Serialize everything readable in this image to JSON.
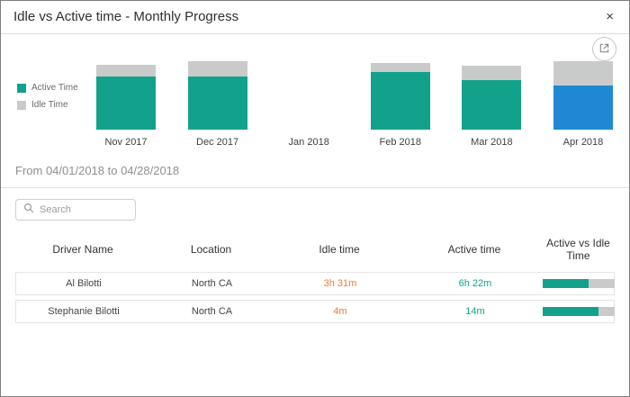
{
  "modal": {
    "title": "Idle vs Active time - Monthly Progress",
    "close_label": "×"
  },
  "toolbar": {
    "export_icon": "export"
  },
  "chart_data": {
    "type": "bar",
    "stacked": true,
    "categories": [
      "Nov 2017",
      "Dec 2017",
      "Jan 2018",
      "Feb 2018",
      "Mar 2018",
      "Apr 2018"
    ],
    "series": [
      {
        "name": "Active Time",
        "values": [
          8.0,
          7.9,
          0,
          8.6,
          7.4,
          6.6
        ]
      },
      {
        "name": "Idle Time",
        "values": [
          1.8,
          2.3,
          0,
          1.4,
          2.2,
          3.6
        ]
      }
    ],
    "highlighted_category": "Apr 2018",
    "ylim": [
      0,
      10.5
    ],
    "legend_position": "left",
    "grid": false,
    "colors": {
      "active": "#12a28b",
      "idle": "#c9cbca",
      "highlight": "#1e88d5"
    }
  },
  "period": {
    "label": "From 04/01/2018 to 04/28/2018"
  },
  "search": {
    "placeholder": "Search"
  },
  "table": {
    "columns": [
      "Driver Name",
      "Location",
      "Idle time",
      "Active time",
      "Active vs Idle Time"
    ],
    "rows": [
      {
        "driver": "Al Bilotti",
        "location": "North CA",
        "idle_time": "3h 31m",
        "active_time": "6h 22m",
        "active_pct": 64
      },
      {
        "driver": "Stephanie Bilotti",
        "location": "North CA",
        "idle_time": "4m",
        "active_time": "14m",
        "active_pct": 78
      }
    ]
  },
  "colors": {
    "active_teal": "#12a28b",
    "idle_gray": "#c9cbca",
    "selected_blue": "#1e88d5",
    "idle_text_orange": "#e87e3c"
  }
}
